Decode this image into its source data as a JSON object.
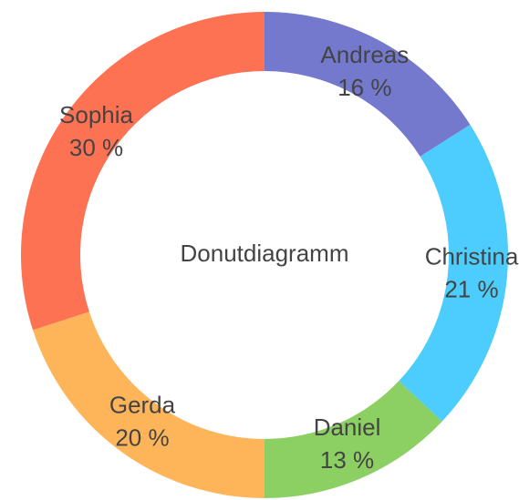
{
  "chart_data": {
    "type": "donut",
    "title": "Donutdiagramm",
    "categories": [
      "Andreas",
      "Christina",
      "Daniel",
      "Gerda",
      "Sophia"
    ],
    "values": [
      16,
      21,
      13,
      20,
      30
    ],
    "value_labels": [
      "16 %",
      "21 %",
      "13 %",
      "20 %",
      "30 %"
    ],
    "colors": [
      "#7479cd",
      "#4dcdfd",
      "#8ccf62",
      "#feb55a",
      "#fd7253"
    ]
  }
}
